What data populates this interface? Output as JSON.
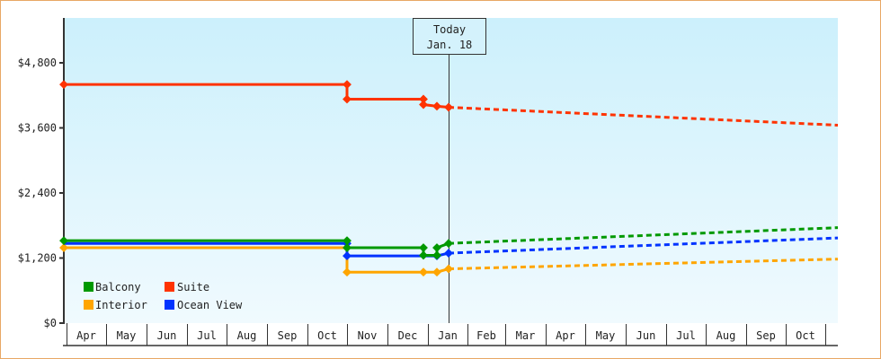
{
  "chart_data": {
    "type": "line",
    "title": "",
    "xlabel": "",
    "ylabel": "",
    "ylim": [
      0,
      5600
    ],
    "y_ticks": [
      "$0",
      "$1,200",
      "$2,400",
      "$3,600",
      "$4,800"
    ],
    "y_tick_values": [
      0,
      1200,
      2400,
      3600,
      4800
    ],
    "categories": [
      "Apr",
      "May",
      "Jun",
      "Jul",
      "Aug",
      "Sep",
      "Oct",
      "Nov",
      "Dec",
      "Jan",
      "Feb",
      "Mar",
      "Apr",
      "May",
      "Jun",
      "Jul",
      "Aug",
      "Sep",
      "Oct"
    ],
    "today_marker": {
      "line1": "Today",
      "line2": "Jan. 18"
    },
    "legend": [
      {
        "name": "Balcony",
        "color": "#009900"
      },
      {
        "name": "Suite",
        "color": "#ff3300"
      },
      {
        "name": "Interior",
        "color": "#ffa500"
      },
      {
        "name": "Ocean View",
        "color": "#0033ff"
      }
    ],
    "series": [
      {
        "name": "Suite",
        "color": "#ff3300",
        "historical": [
          {
            "date": "Apr start",
            "value": 4400
          },
          {
            "date": "Nov 1",
            "value": 4400
          },
          {
            "date": "Nov 1",
            "value": 4130
          },
          {
            "date": "Dec 29",
            "value": 4130
          },
          {
            "date": "Dec 29",
            "value": 4030
          },
          {
            "date": "Jan 8",
            "value": 4000
          },
          {
            "date": "Jan 18",
            "value": 3980
          }
        ],
        "forecast": [
          {
            "date": "Jan 18",
            "value": 3980
          },
          {
            "date": "Oct end",
            "value": 3650
          }
        ]
      },
      {
        "name": "Balcony",
        "color": "#009900",
        "historical": [
          {
            "date": "Apr start",
            "value": 1520
          },
          {
            "date": "Nov 1",
            "value": 1520
          },
          {
            "date": "Nov 1",
            "value": 1390
          },
          {
            "date": "Dec 29",
            "value": 1390
          },
          {
            "date": "Dec 29",
            "value": 1250
          },
          {
            "date": "Jan 8",
            "value": 1250
          },
          {
            "date": "Jan 8",
            "value": 1390
          },
          {
            "date": "Jan 18",
            "value": 1470
          }
        ],
        "forecast": [
          {
            "date": "Jan 18",
            "value": 1470
          },
          {
            "date": "Oct end",
            "value": 1760
          }
        ]
      },
      {
        "name": "Ocean View",
        "color": "#0033ff",
        "historical": [
          {
            "date": "Apr start",
            "value": 1470
          },
          {
            "date": "Nov 1",
            "value": 1470
          },
          {
            "date": "Nov 1",
            "value": 1240
          },
          {
            "date": "Jan 8",
            "value": 1240
          },
          {
            "date": "Jan 18",
            "value": 1290
          }
        ],
        "forecast": [
          {
            "date": "Jan 18",
            "value": 1290
          },
          {
            "date": "Oct end",
            "value": 1570
          }
        ]
      },
      {
        "name": "Interior",
        "color": "#ffa500",
        "historical": [
          {
            "date": "Apr start",
            "value": 1390
          },
          {
            "date": "Nov 1",
            "value": 1390
          },
          {
            "date": "Nov 1",
            "value": 940
          },
          {
            "date": "Dec 29",
            "value": 940
          },
          {
            "date": "Jan 8",
            "value": 940
          },
          {
            "date": "Jan 18",
            "value": 1000
          }
        ],
        "forecast": [
          {
            "date": "Jan 18",
            "value": 1000
          },
          {
            "date": "Oct end",
            "value": 1180
          }
        ]
      }
    ]
  }
}
